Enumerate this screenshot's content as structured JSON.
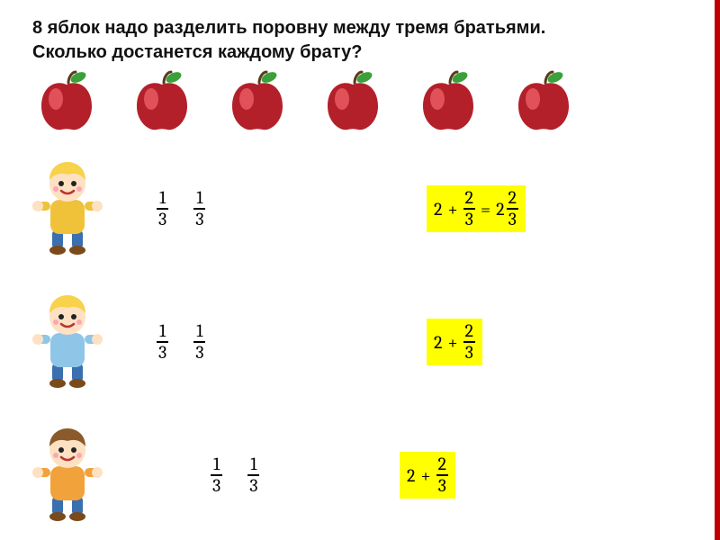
{
  "title_line1": "8 яблок надо разделить поровну между тремя братьями.",
  "title_line2": "Сколько достанется каждому брату?",
  "apple_count": 6,
  "fractions": {
    "piece": {
      "num": "1",
      "den": "3"
    }
  },
  "rows": [
    {
      "kid_hair": "#f7d24a",
      "expr_full": {
        "whole": "2",
        "plus": "+",
        "num": "2",
        "den": "3",
        "eq": " = ",
        "mix_whole": "2",
        "mix_num": "2",
        "mix_den": "3"
      }
    },
    {
      "kid_hair": "#f7d24a",
      "expr_short": {
        "whole": "2",
        "plus": "+",
        "num": "2",
        "den": "3"
      }
    },
    {
      "kid_hair": "#8a5a2a",
      "expr_short": {
        "whole": "2",
        "plus": "+",
        "num": "2",
        "den": "3"
      }
    }
  ],
  "colors": {
    "right_bar": "#c00000",
    "highlight": "#ffff00",
    "apple_body": "#b3202a",
    "apple_shine": "#e85a62",
    "apple_leaf": "#3aa03a",
    "apple_stem": "#5a3c1a",
    "kid_skin": "#fde1c2",
    "kid_shirt1": "#f0c23a",
    "kid_shirt2": "#8fc6e8",
    "kid_shirt3": "#f2a23a",
    "kid_pants": "#3a6fb0",
    "kid_shoe": "#7a4a1a"
  }
}
